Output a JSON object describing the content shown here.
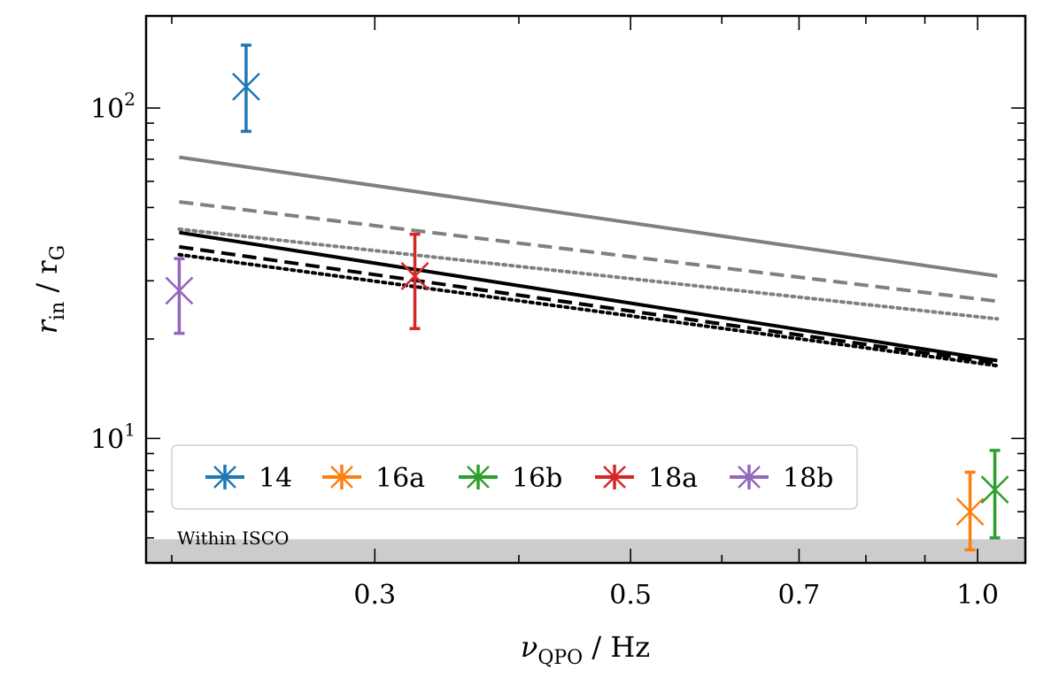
{
  "chart_data": {
    "type": "scatter",
    "title": "",
    "xlabel": {
      "symbol": "ν",
      "sub": "QPO",
      "unit": " / Hz"
    },
    "ylabel": {
      "symbol": "r",
      "sub": "in",
      "mid": " / r",
      "sub2": "G"
    },
    "x_scale": "log",
    "y_scale": "log",
    "xlim": [
      0.19,
      1.1
    ],
    "ylim": [
      4.2,
      190
    ],
    "x_ticks": [
      {
        "value": 0.3,
        "label": "0.3"
      },
      {
        "value": 0.5,
        "label": "0.5"
      },
      {
        "value": 0.7,
        "label": "0.7"
      },
      {
        "value": 1.0,
        "label": "1.0"
      }
    ],
    "y_ticks": [
      {
        "value": 10,
        "base": "10",
        "exp": "1"
      },
      {
        "value": 100,
        "base": "10",
        "exp": "2"
      }
    ],
    "shaded_region": {
      "label": "Within ISCO",
      "y_max": 4.95,
      "color": "#cccccc"
    },
    "series": [
      {
        "name": "14",
        "color": "#1f77b4",
        "x": 0.232,
        "y": 116,
        "yerr_low": 85,
        "yerr_high": 155
      },
      {
        "name": "16a",
        "color": "#ff7f0e",
        "x": 0.985,
        "y": 6.0,
        "yerr_low": 4.6,
        "yerr_high": 7.9
      },
      {
        "name": "16b",
        "color": "#2ca02c",
        "x": 1.035,
        "y": 7.0,
        "yerr_low": 5.0,
        "yerr_high": 9.2
      },
      {
        "name": "18a",
        "color": "#d62728",
        "x": 0.325,
        "y": 31,
        "yerr_low": 21.5,
        "yerr_high": 41.5
      },
      {
        "name": "18b",
        "color": "#9467bd",
        "x": 0.203,
        "y": 28,
        "yerr_low": 20.8,
        "yerr_high": 35
      }
    ],
    "model_lines": [
      {
        "style": "solid",
        "color": "#808080",
        "x": [
          0.203,
          1.04
        ],
        "y": [
          71,
          31
        ]
      },
      {
        "style": "dashed",
        "color": "#808080",
        "x": [
          0.203,
          1.04
        ],
        "y": [
          52,
          26
        ]
      },
      {
        "style": "dotted",
        "color": "#808080",
        "x": [
          0.203,
          1.04
        ],
        "y": [
          43,
          23
        ]
      },
      {
        "style": "solid",
        "color": "#000000",
        "x": [
          0.203,
          1.04
        ],
        "y": [
          42,
          17.2
        ]
      },
      {
        "style": "dashed",
        "color": "#000000",
        "x": [
          0.203,
          1.04
        ],
        "y": [
          38,
          16.9
        ]
      },
      {
        "style": "dotted",
        "color": "#000000",
        "x": [
          0.203,
          1.04
        ],
        "y": [
          36,
          16.6
        ]
      }
    ],
    "legend": {
      "position": "lower-left",
      "ncol": 5
    },
    "grid": false
  }
}
